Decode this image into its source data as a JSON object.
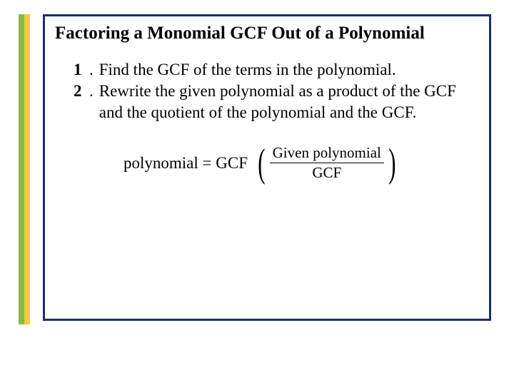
{
  "colors": {
    "border": "#1a2e6b",
    "stripe_green": "#87b94a",
    "stripe_yellow": "#f5c93d",
    "text": "#000000",
    "background": "#ffffff"
  },
  "title": "Factoring a Monomial GCF Out of a Polynomial",
  "steps": [
    {
      "num": "1",
      "text": "Find the GCF of the terms in the polynomial."
    },
    {
      "num": "2",
      "text": "Rewrite the given polynomial as a product of the GCF and the quotient of the polynomial and the GCF."
    }
  ],
  "formula": {
    "lhs": "polynomial = GCF",
    "numerator": "Given polynomial",
    "denominator": "GCF"
  },
  "typography": {
    "title_fontsize": 25,
    "body_fontsize": 23,
    "fraction_fontsize": 21,
    "font_family": "Times New Roman"
  }
}
